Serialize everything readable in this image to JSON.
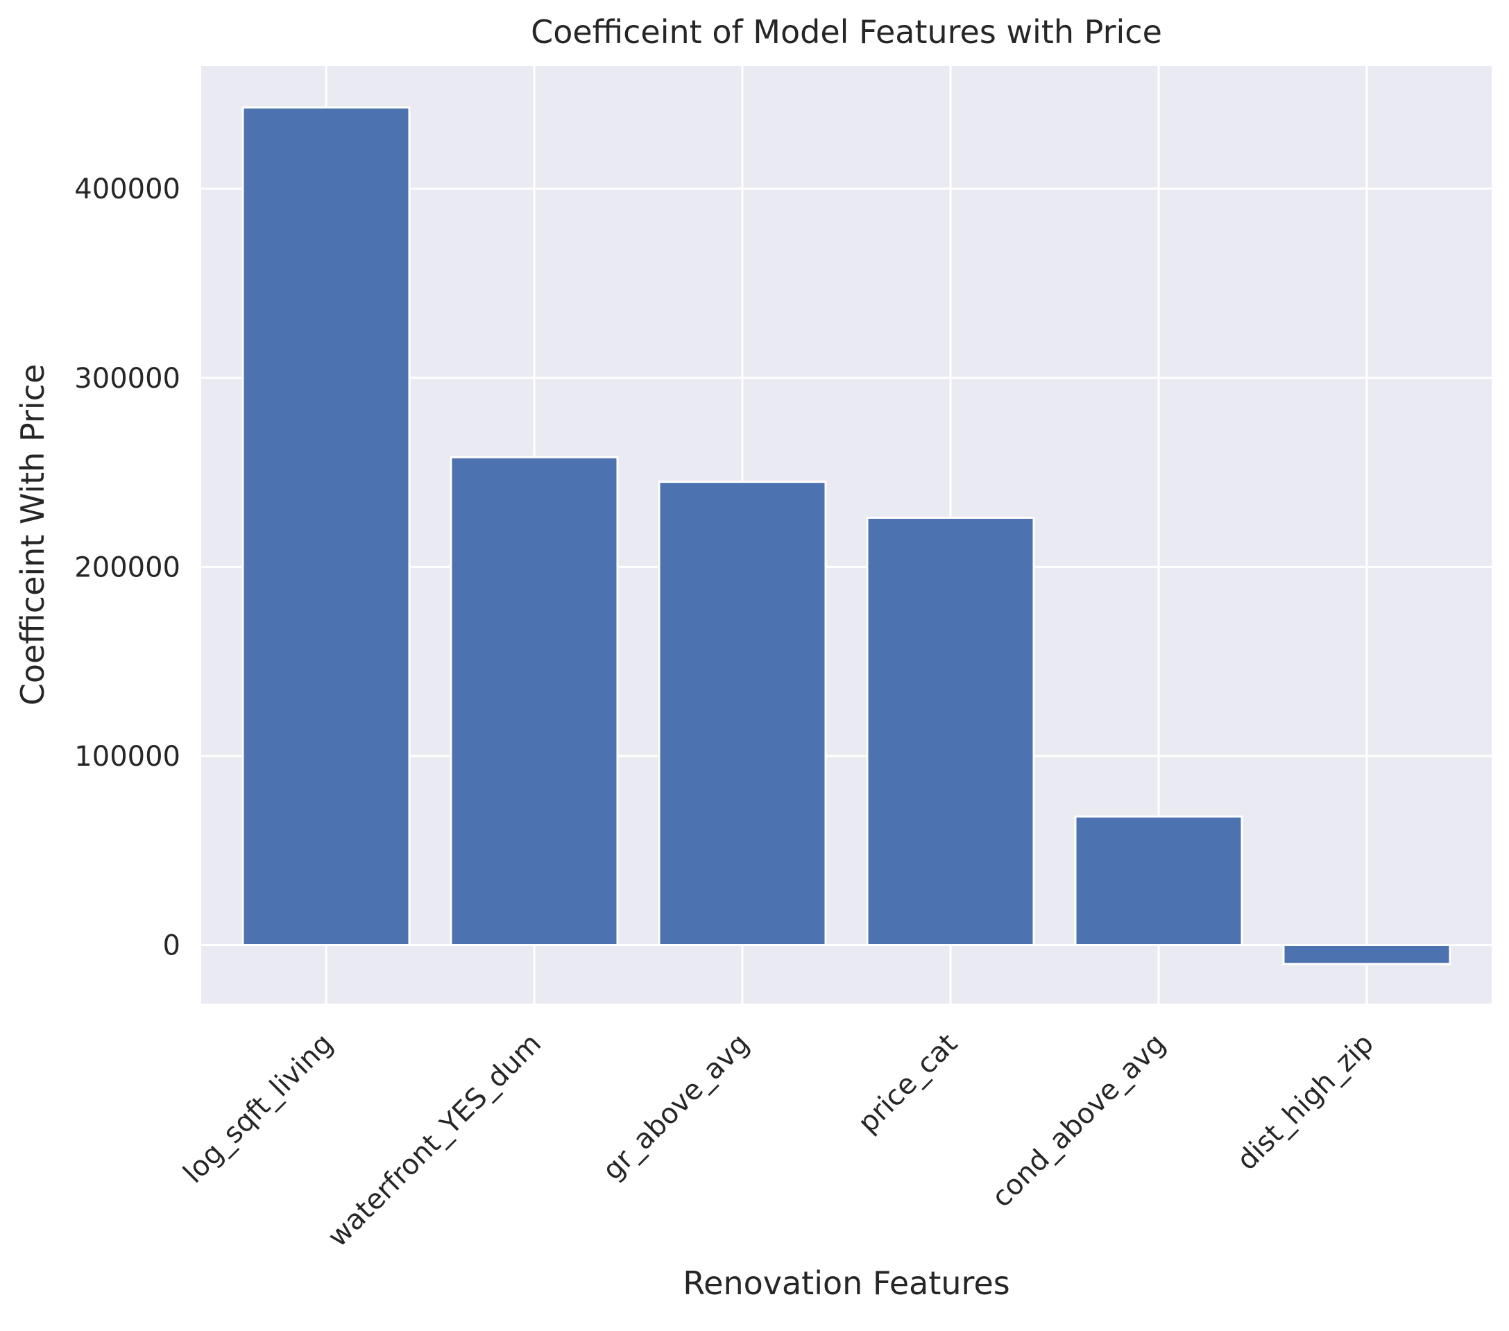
{
  "chart_data": {
    "type": "bar",
    "title": "Coefficeint of Model Features with Price",
    "xlabel": "Renovation Features",
    "ylabel": "Coefficeint With Price",
    "categories": [
      "log_sqft_living",
      "waterfront_YES_dum",
      "gr_above_avg",
      "price_cat",
      "cond_above_avg",
      "dist_high_zip"
    ],
    "values": [
      443000,
      258000,
      245000,
      226000,
      68000,
      -10000
    ],
    "ylim": [
      -31000,
      465000
    ],
    "yticks": [
      0,
      100000,
      200000,
      300000,
      400000
    ],
    "ytick_labels": [
      "0",
      "100000",
      "200000",
      "300000",
      "400000"
    ],
    "grid": true,
    "bar_color": "#4c72b0",
    "background_color": "#eaeaf2",
    "grid_color": "#ffffff"
  }
}
